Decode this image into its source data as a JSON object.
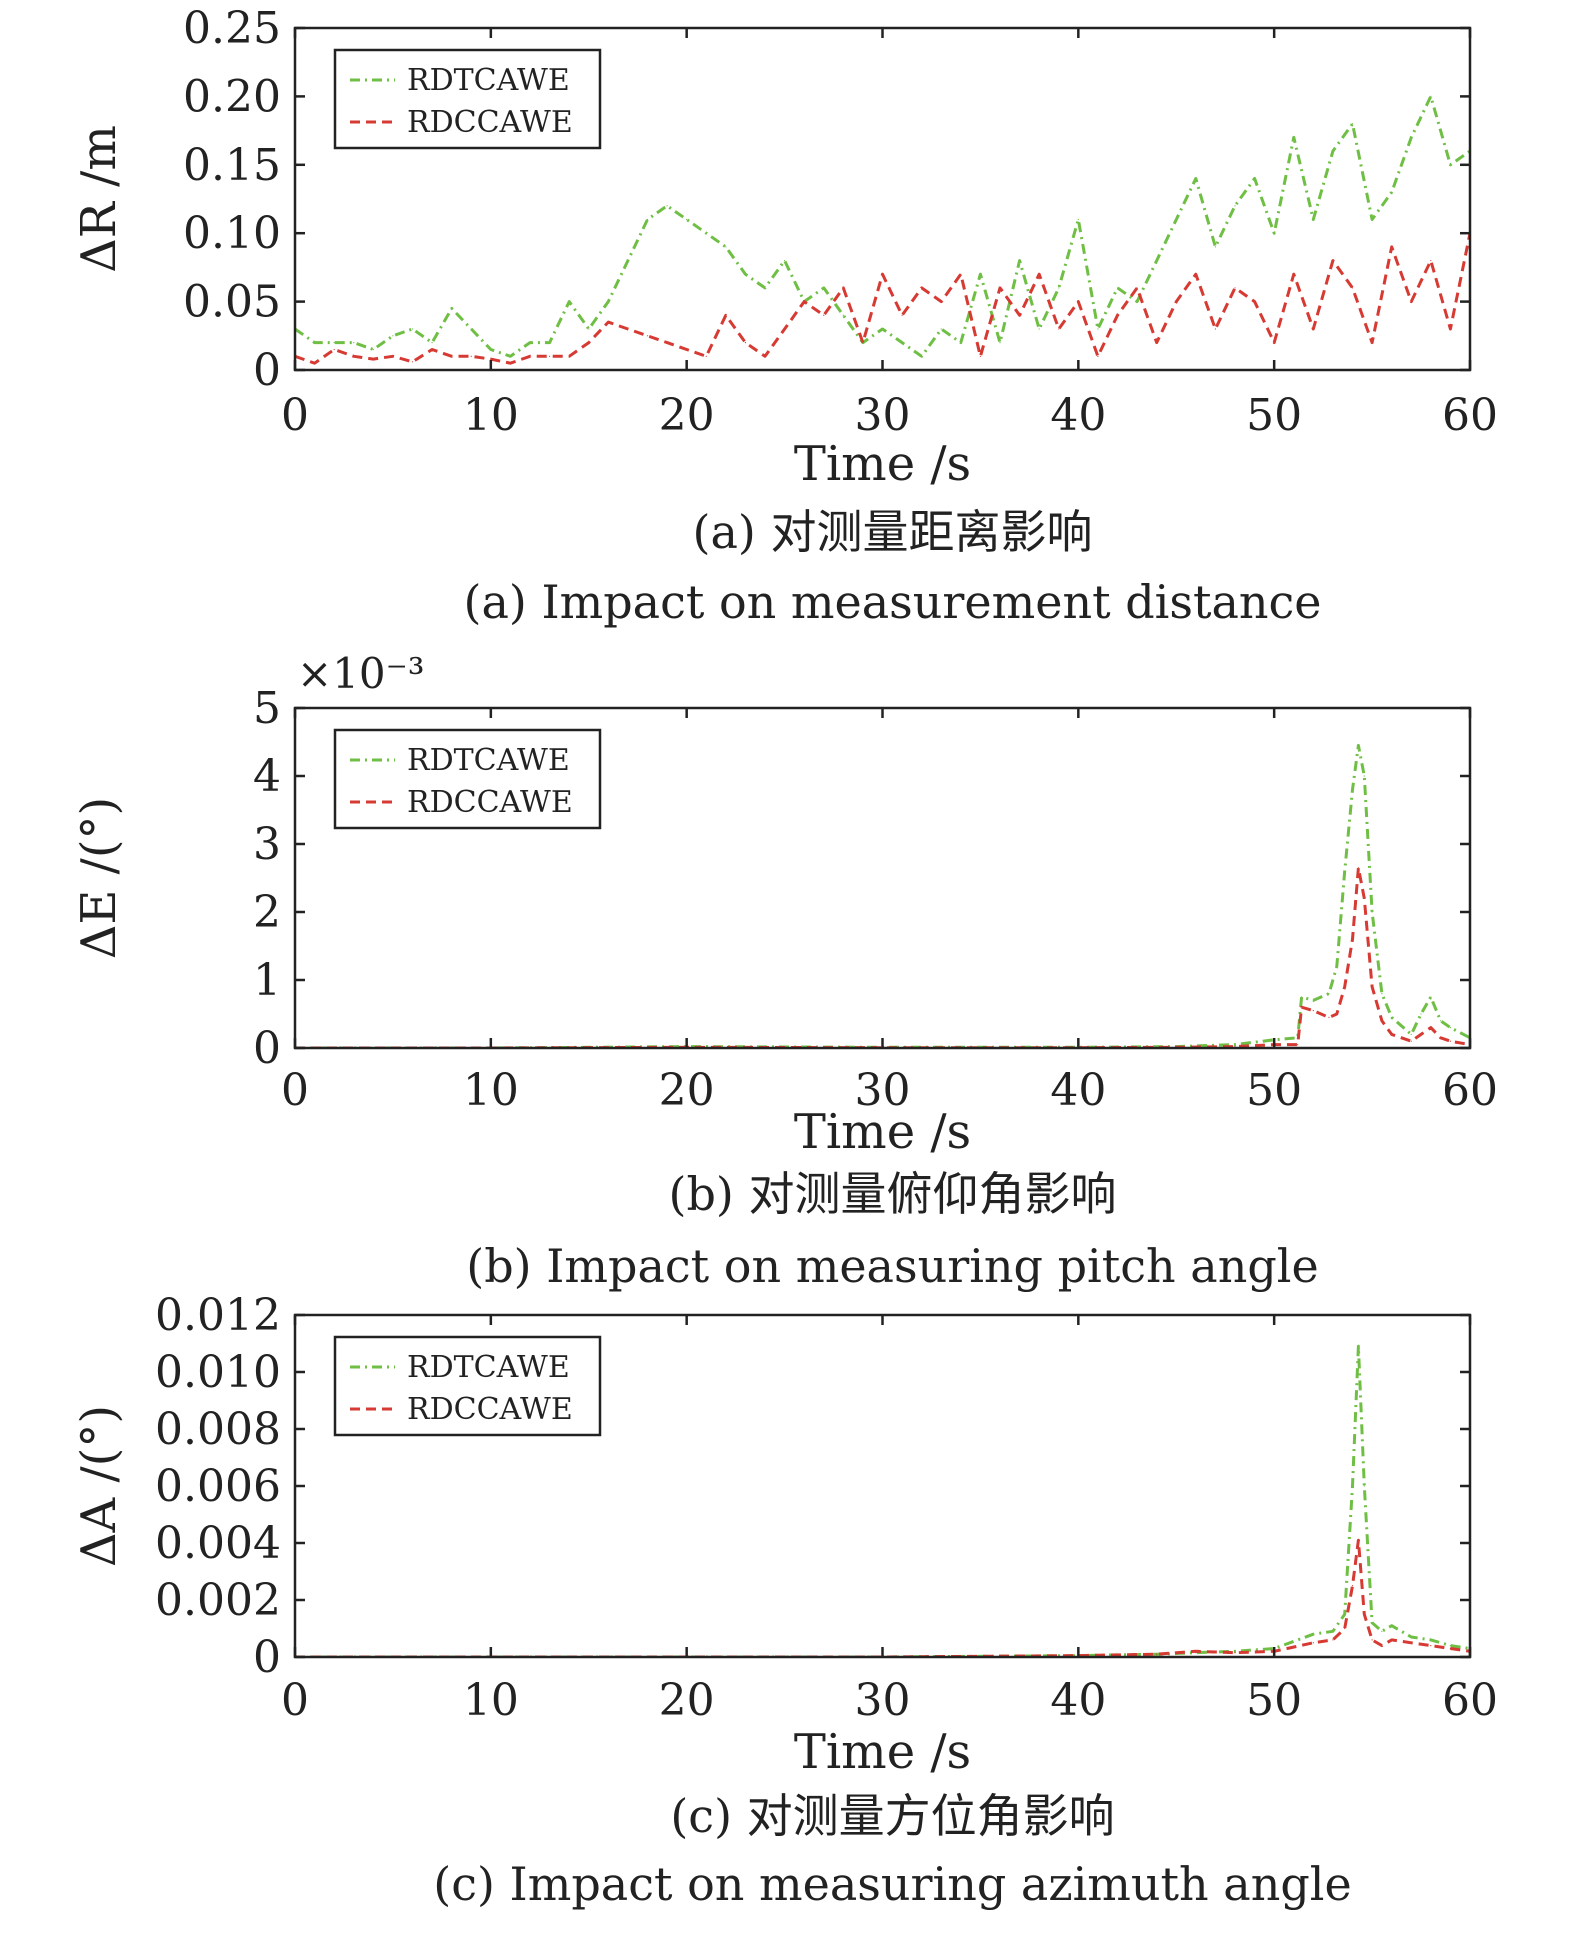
{
  "colors": {
    "green": "#6fbf44",
    "red": "#d63a32",
    "axis": "#222222"
  },
  "chart_data": [
    {
      "type": "line",
      "xlabel": "Time /s",
      "ylabel": "ΔR /m",
      "caption_zh": "(a) 对测量距离影响",
      "caption_en": "(a) Impact on measurement distance",
      "multiplier": "",
      "xlim": [
        0,
        60
      ],
      "ylim": [
        0,
        0.25
      ],
      "xticks": [
        0,
        10,
        20,
        30,
        40,
        50,
        60
      ],
      "xtick_labels": [
        "0",
        "10",
        "20",
        "30",
        "40",
        "50",
        "60"
      ],
      "yticks": [
        0,
        0.05,
        0.1,
        0.15,
        0.2,
        0.25
      ],
      "ytick_labels": [
        "0",
        "0.05",
        "0.10",
        "0.15",
        "0.20",
        "0.25"
      ],
      "legend": "top-left",
      "series": [
        {
          "name": "RDTCAWE",
          "style": "dashdot",
          "color": "#6fbf44",
          "x": [
            0,
            1,
            2,
            3,
            4,
            5,
            6,
            7,
            8,
            9,
            10,
            11,
            12,
            13,
            14,
            15,
            16,
            17,
            18,
            19,
            20,
            21,
            22,
            23,
            24,
            25,
            26,
            27,
            28,
            29,
            30,
            31,
            32,
            33,
            34,
            35,
            36,
            37,
            38,
            39,
            40,
            41,
            42,
            43,
            44,
            45,
            46,
            47,
            48,
            49,
            50,
            51,
            52,
            53,
            54,
            55,
            56,
            57,
            58,
            59,
            60
          ],
          "y": [
            0.03,
            0.02,
            0.02,
            0.02,
            0.015,
            0.025,
            0.03,
            0.02,
            0.045,
            0.03,
            0.015,
            0.01,
            0.02,
            0.02,
            0.05,
            0.03,
            0.05,
            0.08,
            0.11,
            0.12,
            0.11,
            0.1,
            0.09,
            0.07,
            0.06,
            0.08,
            0.05,
            0.06,
            0.04,
            0.02,
            0.03,
            0.02,
            0.01,
            0.03,
            0.02,
            0.07,
            0.02,
            0.08,
            0.03,
            0.06,
            0.11,
            0.03,
            0.06,
            0.05,
            0.08,
            0.11,
            0.14,
            0.09,
            0.12,
            0.14,
            0.1,
            0.17,
            0.11,
            0.16,
            0.18,
            0.11,
            0.13,
            0.17,
            0.2,
            0.15,
            0.16
          ]
        },
        {
          "name": "RDCCAWE",
          "style": "dashed",
          "color": "#d63a32",
          "x": [
            0,
            1,
            2,
            3,
            4,
            5,
            6,
            7,
            8,
            9,
            10,
            11,
            12,
            13,
            14,
            15,
            16,
            17,
            18,
            19,
            20,
            21,
            22,
            23,
            24,
            25,
            26,
            27,
            28,
            29,
            30,
            31,
            32,
            33,
            34,
            35,
            36,
            37,
            38,
            39,
            40,
            41,
            42,
            43,
            44,
            45,
            46,
            47,
            48,
            49,
            50,
            51,
            52,
            53,
            54,
            55,
            56,
            57,
            58,
            59,
            60
          ],
          "y": [
            0.01,
            0.005,
            0.015,
            0.01,
            0.008,
            0.01,
            0.006,
            0.015,
            0.01,
            0.01,
            0.008,
            0.005,
            0.01,
            0.01,
            0.01,
            0.02,
            0.035,
            0.03,
            0.025,
            0.02,
            0.015,
            0.01,
            0.04,
            0.02,
            0.01,
            0.03,
            0.05,
            0.04,
            0.06,
            0.02,
            0.07,
            0.04,
            0.06,
            0.05,
            0.07,
            0.01,
            0.06,
            0.04,
            0.07,
            0.03,
            0.05,
            0.01,
            0.04,
            0.06,
            0.02,
            0.05,
            0.07,
            0.03,
            0.06,
            0.05,
            0.02,
            0.07,
            0.03,
            0.08,
            0.06,
            0.02,
            0.09,
            0.05,
            0.08,
            0.03,
            0.1
          ]
        }
      ]
    },
    {
      "type": "line",
      "xlabel": "Time /s",
      "ylabel": "ΔE /(°)",
      "caption_zh": "(b) 对测量俯仰角影响",
      "caption_en": "(b) Impact on measuring pitch angle",
      "multiplier": "×10⁻³",
      "xlim": [
        0,
        60
      ],
      "ylim": [
        0,
        5
      ],
      "xticks": [
        0,
        10,
        20,
        30,
        40,
        50,
        60
      ],
      "xtick_labels": [
        "0",
        "10",
        "20",
        "30",
        "40",
        "50",
        "60"
      ],
      "yticks": [
        0,
        1,
        2,
        3,
        4,
        5
      ],
      "ytick_labels": [
        "0",
        "1",
        "2",
        "3",
        "4",
        "5"
      ],
      "legend": "top-left",
      "series": [
        {
          "name": "RDTCAWE",
          "style": "dashdot",
          "color": "#6fbf44",
          "x": [
            0,
            10,
            20,
            30,
            40,
            45,
            48,
            50,
            51.2,
            51.4,
            52,
            52.8,
            53.2,
            53.6,
            54,
            54.3,
            54.6,
            55,
            55.5,
            56,
            57,
            57.5,
            58,
            58.5,
            59,
            60
          ],
          "y": [
            0,
            0,
            0.02,
            0.01,
            0.01,
            0.02,
            0.05,
            0.12,
            0.15,
            0.75,
            0.7,
            0.8,
            1.2,
            2.6,
            3.8,
            4.45,
            4.0,
            2.0,
            0.8,
            0.45,
            0.2,
            0.5,
            0.75,
            0.4,
            0.3,
            0.15
          ]
        },
        {
          "name": "RDCCAWE",
          "style": "dashed",
          "color": "#d63a32",
          "x": [
            0,
            10,
            20,
            30,
            40,
            45,
            48,
            50,
            51.2,
            51.4,
            52,
            52.8,
            53.2,
            53.6,
            54,
            54.3,
            54.6,
            55,
            55.5,
            56,
            57,
            57.5,
            58,
            58.5,
            59,
            60
          ],
          "y": [
            0,
            0,
            0.01,
            0.005,
            0.005,
            0.01,
            0.02,
            0.05,
            0.05,
            0.6,
            0.55,
            0.45,
            0.5,
            0.9,
            1.6,
            2.65,
            2.2,
            0.9,
            0.4,
            0.2,
            0.1,
            0.2,
            0.3,
            0.15,
            0.1,
            0.05
          ]
        }
      ]
    },
    {
      "type": "line",
      "xlabel": "Time /s",
      "ylabel": "ΔA /(°)",
      "caption_zh": "(c) 对测量方位角影响",
      "caption_en": "(c) Impact on measuring azimuth angle",
      "multiplier": "",
      "xlim": [
        0,
        60
      ],
      "ylim": [
        0,
        0.012
      ],
      "xticks": [
        0,
        10,
        20,
        30,
        40,
        50,
        60
      ],
      "xtick_labels": [
        "0",
        "10",
        "20",
        "30",
        "40",
        "50",
        "60"
      ],
      "yticks": [
        0,
        0.002,
        0.004,
        0.006,
        0.008,
        0.01,
        0.012
      ],
      "ytick_labels": [
        "0",
        "0.002",
        "0.004",
        "0.006",
        "0.008",
        "0.010",
        "0.012"
      ],
      "legend": "top-left",
      "series": [
        {
          "name": "RDTCAWE",
          "style": "dashdot",
          "color": "#6fbf44",
          "x": [
            0,
            10,
            20,
            30,
            40,
            44,
            46,
            48,
            50,
            52,
            53,
            53.6,
            54,
            54.3,
            54.6,
            55,
            55.5,
            56,
            57,
            58,
            59,
            60
          ],
          "y": [
            0,
            0,
            0,
            0,
            5e-05,
            0.0001,
            0.00015,
            0.0002,
            0.0003,
            0.0008,
            0.0009,
            0.0015,
            0.006,
            0.0109,
            0.006,
            0.0012,
            0.0009,
            0.0011,
            0.0007,
            0.0006,
            0.0004,
            0.0003
          ]
        },
        {
          "name": "RDCCAWE",
          "style": "dashed",
          "color": "#d63a32",
          "x": [
            0,
            10,
            20,
            30,
            40,
            44,
            46,
            48,
            50,
            52,
            53,
            53.6,
            54,
            54.3,
            54.6,
            55,
            55.5,
            56,
            57,
            58,
            59,
            60
          ],
          "y": [
            0,
            0,
            0,
            0,
            5e-05,
            0.0001,
            0.0002,
            0.00015,
            0.0002,
            0.0005,
            0.0006,
            0.001,
            0.0025,
            0.0041,
            0.0015,
            0.0006,
            0.0004,
            0.0006,
            0.0005,
            0.0004,
            0.0003,
            0.0002
          ]
        }
      ]
    }
  ]
}
